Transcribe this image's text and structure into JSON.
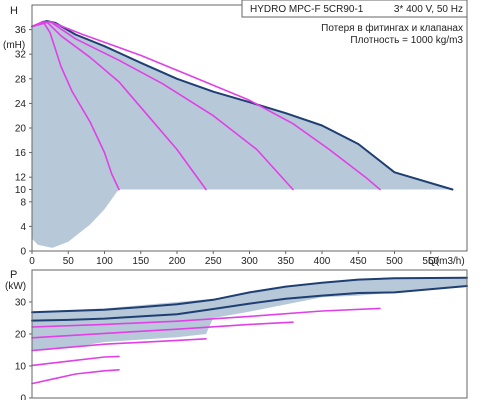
{
  "info": {
    "model": "HYDRO MPC-F 5CR90-1",
    "supply": "3* 400 V, 50 Hz",
    "note_losses": "Потеря в фитингах и клапанах",
    "density": "Плотность = 1000 kg/m3"
  },
  "chart_data": [
    {
      "type": "line",
      "panel": "head",
      "ylabel": "H",
      "yunit": "(mH)",
      "xlabel": "Q(m3/h)",
      "xlim": [
        0,
        600
      ],
      "ylim": [
        0,
        40
      ],
      "xticks": [
        0,
        50,
        100,
        150,
        200,
        250,
        300,
        350,
        400,
        450,
        500,
        550
      ],
      "yticks": [
        0,
        4,
        8,
        10,
        12,
        16,
        20,
        24,
        28,
        32,
        36
      ],
      "grid": false,
      "legend": "none",
      "colors": {
        "max_curve": "#1f3f73",
        "pump_curves": "#e040e6",
        "band_fill": "#b7c9d9"
      },
      "band_outline": [
        [
          0,
          36.5
        ],
        [
          15,
          37.5
        ],
        [
          32,
          37.1
        ],
        [
          60,
          35.2
        ],
        [
          100,
          33.3
        ],
        [
          150,
          30.6
        ],
        [
          200,
          28
        ],
        [
          250,
          25.9
        ],
        [
          300,
          24.2
        ],
        [
          350,
          22.4
        ],
        [
          400,
          20.4
        ],
        [
          450,
          17.4
        ],
        [
          500,
          12.8
        ],
        [
          580,
          10
        ],
        [
          120,
          10
        ],
        [
          117,
          9.6
        ],
        [
          100,
          6.8
        ],
        [
          80,
          4.3
        ],
        [
          50,
          1.5
        ],
        [
          28,
          0.5
        ],
        [
          8,
          1
        ],
        [
          0,
          2
        ]
      ],
      "series": [
        {
          "role": "max",
          "points": [
            [
              0,
              36.5
            ],
            [
              20,
              37.4
            ],
            [
              32,
              37.1
            ],
            [
              60,
              35.2
            ],
            [
              100,
              33.3
            ],
            [
              150,
              30.6
            ],
            [
              200,
              28
            ],
            [
              250,
              25.9
            ],
            [
              300,
              24.2
            ],
            [
              350,
              22.4
            ],
            [
              400,
              20.4
            ],
            [
              450,
              17.4
            ],
            [
              500,
              12.8
            ],
            [
              580,
              10
            ]
          ]
        },
        {
          "role": "pump",
          "points": [
            [
              0,
              36.5
            ],
            [
              15,
              37.3
            ],
            [
              25,
              35.5
            ],
            [
              40,
              30
            ],
            [
              55,
              26
            ],
            [
              80,
              21
            ],
            [
              100,
              16
            ],
            [
              110,
              12.5
            ],
            [
              120,
              10
            ]
          ]
        },
        {
          "role": "pump",
          "points": [
            [
              0,
              36.5
            ],
            [
              20,
              37.3
            ],
            [
              40,
              35
            ],
            [
              80,
              31.5
            ],
            [
              120,
              27.5
            ],
            [
              160,
              22
            ],
            [
              200,
              16.5
            ],
            [
              240,
              10
            ]
          ]
        },
        {
          "role": "pump",
          "points": [
            [
              0,
              36.5
            ],
            [
              25,
              37.3
            ],
            [
              60,
              34.5
            ],
            [
              120,
              31
            ],
            [
              180,
              27.2
            ],
            [
              250,
              22
            ],
            [
              310,
              16.5
            ],
            [
              360,
              10
            ]
          ]
        },
        {
          "role": "pump",
          "points": [
            [
              0,
              36.5
            ],
            [
              25,
              37.3
            ],
            [
              70,
              35.2
            ],
            [
              150,
              31.8
            ],
            [
              220,
              28.4
            ],
            [
              300,
              24.5
            ],
            [
              360,
              20.7
            ],
            [
              410,
              16.5
            ],
            [
              460,
              12
            ],
            [
              480,
              10
            ]
          ]
        }
      ]
    },
    {
      "type": "line",
      "panel": "power",
      "ylabel": "P",
      "yunit": "(kW)",
      "xlim": [
        0,
        600
      ],
      "ylim": [
        0,
        40
      ],
      "yticks": [
        0,
        10,
        20,
        30
      ],
      "grid": false,
      "legend": "none",
      "band_outline": [
        [
          0,
          27
        ],
        [
          50,
          27.5
        ],
        [
          100,
          28
        ],
        [
          200,
          30
        ],
        [
          250,
          31
        ],
        [
          350,
          34.5
        ],
        [
          450,
          37
        ],
        [
          600,
          37.6
        ],
        [
          600,
          35
        ],
        [
          500,
          33
        ],
        [
          450,
          32
        ],
        [
          400,
          31.5
        ],
        [
          300,
          27
        ],
        [
          250,
          25
        ],
        [
          240,
          20
        ],
        [
          200,
          19
        ],
        [
          100,
          17.5
        ],
        [
          50,
          15.6
        ],
        [
          0,
          15
        ]
      ],
      "series": [
        {
          "role": "max",
          "points": [
            [
              0,
              26.8
            ],
            [
              100,
              27.6
            ],
            [
              150,
              28.4
            ],
            [
              200,
              29.3
            ],
            [
              250,
              30.7
            ],
            [
              300,
              33
            ],
            [
              350,
              34.8
            ],
            [
              400,
              36
            ],
            [
              450,
              37
            ],
            [
              500,
              37.4
            ],
            [
              600,
              37.6
            ]
          ]
        },
        {
          "role": "max",
          "points": [
            [
              0,
              24.2
            ],
            [
              50,
              24.4
            ],
            [
              100,
              24.8
            ],
            [
              150,
              25.5
            ],
            [
              200,
              26.2
            ],
            [
              250,
              27.8
            ],
            [
              300,
              29.5
            ],
            [
              350,
              31
            ],
            [
              400,
              32
            ],
            [
              450,
              32.8
            ],
            [
              500,
              33
            ],
            [
              600,
              35
            ]
          ]
        },
        {
          "role": "pump",
          "points": [
            [
              0,
              22.2
            ],
            [
              100,
              23
            ],
            [
              200,
              24
            ],
            [
              300,
              25.5
            ],
            [
              400,
              27.2
            ],
            [
              480,
              28
            ]
          ]
        },
        {
          "role": "pump",
          "points": [
            [
              0,
              18.8
            ],
            [
              100,
              20.2
            ],
            [
              200,
              21.5
            ],
            [
              300,
              23
            ],
            [
              360,
              23.7
            ]
          ]
        },
        {
          "role": "pump",
          "points": [
            [
              0,
              14.8
            ],
            [
              100,
              16.8
            ],
            [
              200,
              18
            ],
            [
              240,
              18.5
            ]
          ]
        },
        {
          "role": "pump",
          "points": [
            [
              0,
              10.2
            ],
            [
              50,
              11.5
            ],
            [
              100,
              12.8
            ],
            [
              120,
              13
            ]
          ]
        },
        {
          "role": "pump",
          "points": [
            [
              0,
              4.5
            ],
            [
              30,
              6
            ],
            [
              60,
              7.5
            ],
            [
              100,
              8.5
            ],
            [
              120,
              8.8
            ]
          ]
        }
      ]
    }
  ]
}
